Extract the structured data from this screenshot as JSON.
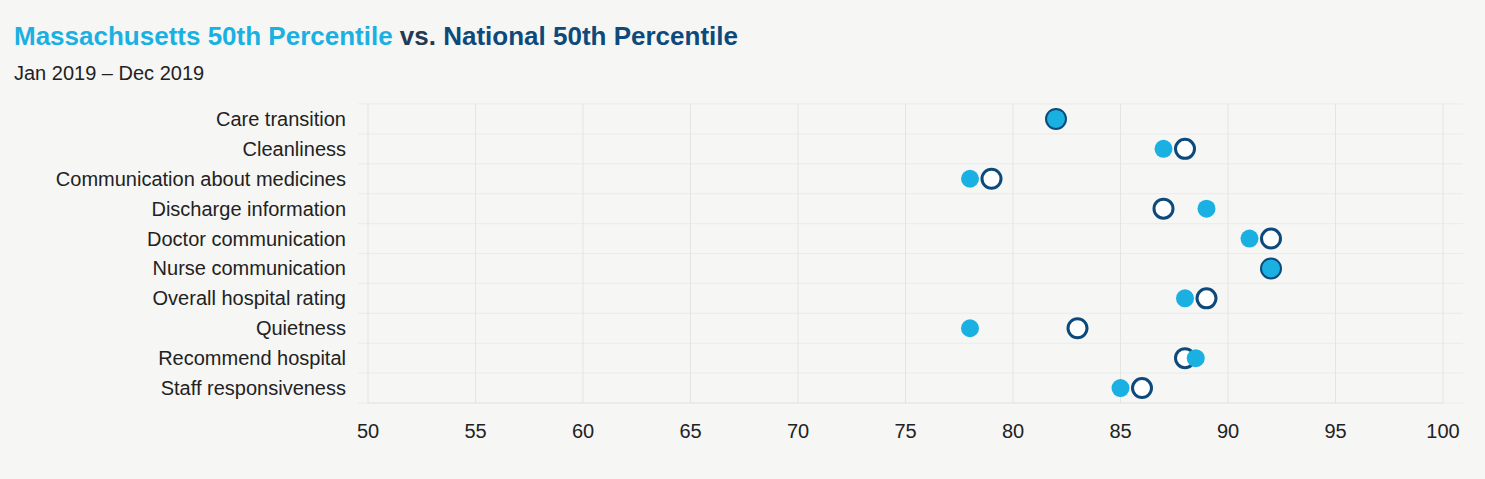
{
  "chart_data": {
    "type": "dot",
    "title": "Massachusetts 50th Percentile vs. National 50th Percentile",
    "subtitle": "Jan 2019 – Dec 2019",
    "orientation": "horizontal",
    "categories": [
      "Care transition",
      "Cleanliness",
      "Communication about medicines",
      "Discharge information",
      "Doctor communication",
      "Nurse communication",
      "Overall hospital rating",
      "Quietness",
      "Recommend hospital",
      "Staff responsiveness"
    ],
    "series": [
      {
        "name": "National 50th Percentile",
        "color": "#0d4a7b",
        "marker": "open_circle",
        "values": [
          82,
          88,
          79,
          87,
          92,
          92,
          89,
          83,
          88,
          86
        ]
      },
      {
        "name": "Massachusetts 50th Percentile",
        "color": "#1ab1e2",
        "marker": "circle",
        "values": [
          82,
          87,
          78,
          89,
          91,
          92,
          88,
          78,
          88.5,
          85
        ]
      }
    ],
    "xlim": [
      50,
      100
    ],
    "xticks": [
      50,
      55,
      60,
      65,
      70,
      75,
      80,
      85,
      90,
      95,
      100
    ],
    "grid": true
  }
}
